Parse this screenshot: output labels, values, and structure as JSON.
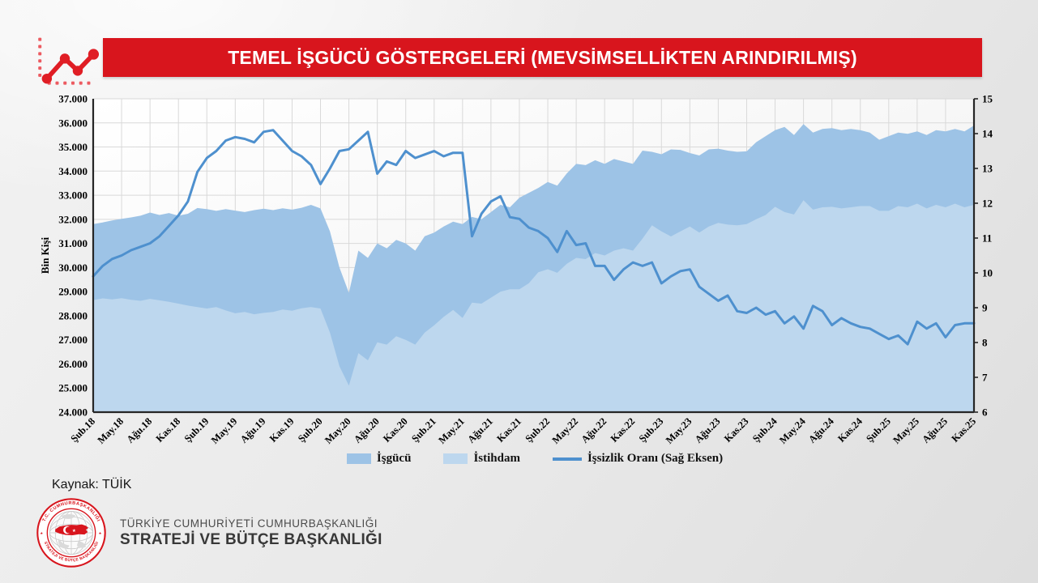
{
  "banner": {
    "title": "TEMEL İŞGÜCÜ GÖSTERGELERİ (MEVSİMSELLİKTEN ARINDIRILMIŞ)",
    "background_color": "#d8151d",
    "text_color": "#ffffff"
  },
  "header_icon": {
    "name": "line-chart-icon",
    "line_color": "#e01e25",
    "dot_color": "#ec5a60"
  },
  "chart_data": {
    "type": "area",
    "title": "",
    "x_tick_labels": [
      "Şub.18",
      "May.18",
      "Ağu.18",
      "Kas.18",
      "Şub.19",
      "May.19",
      "Ağu.19",
      "Kas.19",
      "Şub.20",
      "May.20",
      "Ağu.20",
      "Kas.20",
      "Şub.21",
      "May.21",
      "Ağu.21",
      "Kas.21",
      "Şub.22",
      "May.22",
      "Ağu.22",
      "Kas.22",
      "Şub.23",
      "May.23",
      "Ağu.23",
      "Kas.23",
      "Şub.24",
      "May.24",
      "Ağu.24",
      "Kas.24",
      "Şub.25",
      "May.25",
      "Ağu.25",
      "Kas.25"
    ],
    "months_per_tick": 3,
    "monthly_points": 94,
    "x_range": {
      "start": "Şub.18",
      "end": "Kas.25"
    },
    "left_axis": {
      "label": "Bin Kişi",
      "min": 24000,
      "max": 37000,
      "step": 1000,
      "tick_format": "thousands-dot"
    },
    "right_axis": {
      "label": "",
      "min": 6,
      "max": 15,
      "step": 1
    },
    "grid": true,
    "legend_position": "bottom",
    "series": [
      {
        "name": "İşgücü",
        "type": "area",
        "axis": "left",
        "color": "#9dc3e6",
        "values": [
          31800,
          31870,
          31950,
          32020,
          32080,
          32150,
          32280,
          32180,
          32260,
          32150,
          32230,
          32470,
          32420,
          32350,
          32420,
          32360,
          32300,
          32380,
          32440,
          32380,
          32460,
          32400,
          32480,
          32600,
          32450,
          31500,
          30000,
          28950,
          30700,
          30400,
          31000,
          30800,
          31150,
          31000,
          30700,
          31300,
          31450,
          31700,
          31900,
          31800,
          32100,
          32000,
          32300,
          32600,
          32500,
          32900,
          33100,
          33300,
          33550,
          33400,
          33900,
          34300,
          34250,
          34450,
          34300,
          34500,
          34400,
          34300,
          34850,
          34800,
          34700,
          34900,
          34880,
          34750,
          34650,
          34900,
          34930,
          34850,
          34800,
          34820,
          35200,
          35450,
          35700,
          35830,
          35500,
          35950,
          35600,
          35750,
          35780,
          35700,
          35750,
          35700,
          35600,
          35300,
          35450,
          35600,
          35550,
          35650,
          35500,
          35700,
          35650,
          35750,
          35650,
          35890
        ]
      },
      {
        "name": "İstihdam",
        "type": "area",
        "axis": "left",
        "color": "#bdd7ee",
        "values": [
          28650,
          28720,
          28680,
          28730,
          28660,
          28620,
          28700,
          28640,
          28580,
          28500,
          28420,
          28360,
          28300,
          28360,
          28220,
          28100,
          28160,
          28060,
          28120,
          28160,
          28260,
          28210,
          28310,
          28360,
          28300,
          27300,
          25900,
          25100,
          26450,
          26150,
          26900,
          26800,
          27150,
          27000,
          26800,
          27300,
          27600,
          27950,
          28240,
          27910,
          28540,
          28500,
          28750,
          29000,
          29100,
          29100,
          29350,
          29800,
          29930,
          29780,
          30150,
          30400,
          30350,
          30600,
          30500,
          30700,
          30800,
          30700,
          31200,
          31750,
          31500,
          31290,
          31500,
          31700,
          31450,
          31700,
          31850,
          31780,
          31750,
          31800,
          32000,
          32180,
          32520,
          32300,
          32200,
          32790,
          32400,
          32500,
          32520,
          32450,
          32500,
          32550,
          32550,
          32350,
          32350,
          32550,
          32500,
          32650,
          32450,
          32600,
          32500,
          32650,
          32500,
          32600
        ]
      },
      {
        "name": "İşsizlik Oranı (Sağ Eksen)",
        "type": "line",
        "axis": "right",
        "color": "#4e90ce",
        "values": [
          9.9,
          10.2,
          10.4,
          10.5,
          10.65,
          10.75,
          10.85,
          11.05,
          11.35,
          11.65,
          12.05,
          12.9,
          13.3,
          13.5,
          13.8,
          13.9,
          13.85,
          13.75,
          14.05,
          14.1,
          13.8,
          13.5,
          13.35,
          13.1,
          12.55,
          13.0,
          13.5,
          13.55,
          13.8,
          14.05,
          12.85,
          13.2,
          13.1,
          13.5,
          13.3,
          13.4,
          13.5,
          13.35,
          13.45,
          13.45,
          11.05,
          11.7,
          12.05,
          12.2,
          11.6,
          11.55,
          11.3,
          11.2,
          11.0,
          10.6,
          11.2,
          10.8,
          10.85,
          10.2,
          10.2,
          9.8,
          10.1,
          10.3,
          10.2,
          10.3,
          9.7,
          9.9,
          10.05,
          10.1,
          9.6,
          9.4,
          9.2,
          9.35,
          8.9,
          8.85,
          9.0,
          8.8,
          8.9,
          8.55,
          8.75,
          8.4,
          9.05,
          8.9,
          8.5,
          8.7,
          8.55,
          8.45,
          8.4,
          8.25,
          8.1,
          8.2,
          7.95,
          8.6,
          8.4,
          8.55,
          8.15,
          8.5,
          8.55,
          8.55
        ]
      }
    ]
  },
  "source": {
    "text": "Kaynak: TÜİK"
  },
  "footer": {
    "org_line1": "TÜRKİYE CUMHURİYETİ CUMHURBAŞKANLIĞI",
    "org_line2": "STRATEJİ VE BÜTÇE BAŞKANLIĞI",
    "seal": {
      "top_text": "T.C. CUMHURBAŞKANLIĞI",
      "bottom_text": "STRATEJİ VE BÜTÇE BAŞKANLIĞI",
      "red": "#d8151d"
    }
  }
}
